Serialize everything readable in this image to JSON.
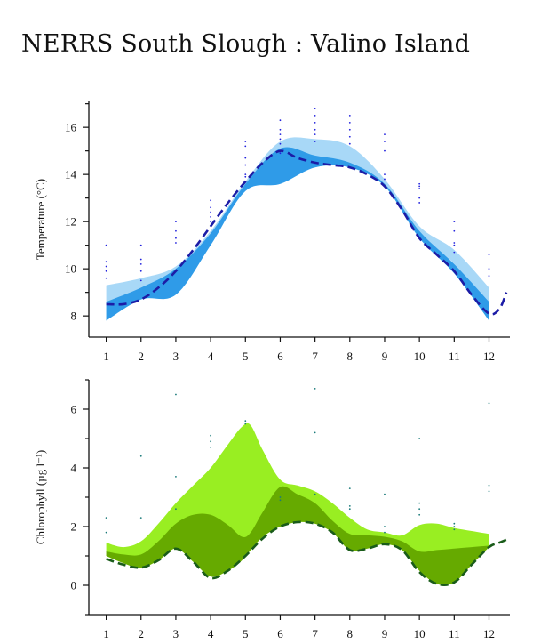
{
  "page": {
    "title": "NERRS South Slough : Valino Island"
  },
  "chart_data": [
    {
      "type": "area",
      "ylabel": "Temperature (°C)",
      "x_ticks": [
        1,
        2,
        3,
        4,
        5,
        6,
        7,
        8,
        9,
        10,
        11,
        12
      ],
      "y_ticks": [
        8,
        10,
        12,
        14,
        16
      ],
      "xlim": [
        0.5,
        12.6
      ],
      "ylim": [
        7.1,
        17.1
      ],
      "colors": {
        "light_band": "#a8d8f7",
        "dark_band": "#2f9be8",
        "median_line": "#1c1ca6",
        "dots": "#2222dd"
      },
      "light_band": {
        "x": [
          1,
          2,
          3,
          4,
          5,
          6,
          7,
          8,
          9,
          10,
          11,
          12
        ],
        "upper": [
          9.3,
          9.6,
          10.1,
          11.6,
          13.7,
          15.4,
          15.5,
          15.2,
          13.8,
          11.8,
          10.8,
          9.2
        ],
        "lower": [
          7.8,
          8.7,
          8.9,
          11.0,
          13.3,
          13.6,
          14.3,
          14.3,
          13.5,
          11.4,
          10.2,
          7.9
        ]
      },
      "dark_band": {
        "x": [
          1,
          2,
          3,
          4,
          5,
          6,
          7,
          8,
          9,
          10,
          11,
          12
        ],
        "upper": [
          8.6,
          9.2,
          10.0,
          11.5,
          13.6,
          15.1,
          14.8,
          14.5,
          13.6,
          11.6,
          10.2,
          8.6
        ],
        "lower": [
          7.8,
          8.7,
          8.9,
          11.0,
          13.3,
          13.6,
          14.3,
          14.3,
          13.5,
          11.3,
          9.8,
          7.8
        ]
      },
      "median_line": {
        "x": [
          1,
          1.5,
          2,
          2.5,
          3,
          3.5,
          4,
          4.5,
          5,
          5.5,
          6,
          6.5,
          7,
          7.5,
          8,
          8.5,
          9,
          9.5,
          10,
          10.5,
          11,
          11.5,
          12,
          12.3,
          12.5
        ],
        "y": [
          8.5,
          8.5,
          8.7,
          9.2,
          9.9,
          10.8,
          11.8,
          12.8,
          13.7,
          14.5,
          15.0,
          14.7,
          14.5,
          14.4,
          14.3,
          14.0,
          13.5,
          12.5,
          11.3,
          10.6,
          9.9,
          8.9,
          8.1,
          8.3,
          9.0
        ]
      },
      "observations": [
        {
          "x": 1,
          "y": [
            11.0,
            10.3,
            10.1,
            9.9,
            9.6
          ]
        },
        {
          "x": 2,
          "y": [
            11.0,
            10.4,
            10.2,
            9.9,
            9.5
          ]
        },
        {
          "x": 3,
          "y": [
            12.0,
            11.6,
            11.3,
            11.1
          ]
        },
        {
          "x": 4,
          "y": [
            12.9,
            12.6,
            12.4,
            12.2,
            12.0
          ]
        },
        {
          "x": 5,
          "y": [
            15.4,
            15.2,
            14.7,
            14.4,
            14.0,
            13.9
          ]
        },
        {
          "x": 6,
          "y": [
            16.3,
            15.9,
            15.7,
            15.5,
            15.3,
            14.9
          ]
        },
        {
          "x": 7,
          "y": [
            16.8,
            16.5,
            16.2,
            15.9,
            15.7,
            15.4
          ]
        },
        {
          "x": 8,
          "y": [
            16.5,
            16.2,
            15.9,
            15.6,
            15.3
          ]
        },
        {
          "x": 9,
          "y": [
            15.7,
            15.4,
            15.0,
            14.0,
            13.8
          ]
        },
        {
          "x": 10,
          "y": [
            13.6,
            13.5,
            13.4,
            13.0,
            12.8
          ]
        },
        {
          "x": 11,
          "y": [
            12.0,
            11.6,
            11.1,
            11.0,
            10.7
          ]
        },
        {
          "x": 12,
          "y": [
            10.6,
            10.0,
            9.7
          ]
        }
      ]
    },
    {
      "type": "area",
      "ylabel": "Chlorophyll (µg l⁻¹)",
      "x_ticks": [
        1,
        2,
        3,
        4,
        5,
        6,
        7,
        8,
        9,
        10,
        11,
        12
      ],
      "y_ticks": [
        0,
        2,
        4,
        6
      ],
      "xlim": [
        0.5,
        12.6
      ],
      "ylim": [
        -1.0,
        7.0
      ],
      "colors": {
        "light_band": "#99ee22",
        "dark_band": "#66aa00",
        "median_line": "#1a5c1a",
        "dots": "#1a7a7a"
      },
      "light_band": {
        "x": [
          1,
          1.5,
          2,
          2.5,
          3,
          3.5,
          4,
          4.5,
          4.9,
          5.15,
          5.5,
          6,
          6.5,
          7,
          7.5,
          8,
          8.5,
          9,
          9.5,
          10,
          10.5,
          11,
          11.5,
          12
        ],
        "upper": [
          1.45,
          1.3,
          1.5,
          2.1,
          2.8,
          3.4,
          4.0,
          4.8,
          5.4,
          5.45,
          4.6,
          3.6,
          3.4,
          3.2,
          2.8,
          2.3,
          1.9,
          1.8,
          1.7,
          2.05,
          2.1,
          1.95,
          1.85,
          1.75
        ],
        "lower": [
          1.0,
          0.75,
          0.6,
          0.85,
          1.25,
          0.8,
          0.3,
          0.5,
          0.85,
          1.2,
          1.65,
          2.0,
          2.15,
          2.1,
          1.8,
          1.2,
          1.25,
          1.4,
          1.2,
          0.5,
          0.05,
          0.1,
          0.7,
          1.3
        ]
      },
      "dark_band": {
        "x": [
          1,
          1.5,
          2,
          2.5,
          3,
          3.5,
          4,
          4.5,
          4.9,
          5.15,
          5.5,
          6,
          6.5,
          7,
          7.5,
          8,
          8.5,
          9,
          9.5,
          10,
          10.5,
          11,
          11.5,
          12
        ],
        "upper": [
          1.15,
          1.05,
          1.05,
          1.5,
          2.1,
          2.4,
          2.4,
          2.05,
          1.65,
          1.8,
          2.5,
          3.35,
          3.1,
          2.8,
          2.2,
          1.75,
          1.7,
          1.65,
          1.5,
          1.15,
          1.2,
          1.25,
          1.3,
          1.35
        ],
        "lower": [
          1.0,
          0.75,
          0.6,
          0.85,
          1.25,
          0.8,
          0.3,
          0.5,
          0.85,
          1.2,
          1.65,
          2.0,
          2.15,
          2.1,
          1.8,
          1.2,
          1.25,
          1.4,
          1.2,
          0.5,
          0.05,
          0.1,
          0.7,
          1.3
        ]
      },
      "median_line": {
        "x": [
          1,
          1.5,
          2,
          2.5,
          3,
          3.5,
          4,
          4.5,
          5,
          5.5,
          6,
          6.5,
          7,
          7.5,
          8,
          8.5,
          9,
          9.5,
          10,
          10.5,
          11,
          11.5,
          12,
          12.3,
          12.6
        ],
        "y": [
          0.9,
          0.7,
          0.6,
          0.85,
          1.25,
          0.8,
          0.25,
          0.5,
          1.0,
          1.6,
          2.0,
          2.15,
          2.1,
          1.8,
          1.2,
          1.25,
          1.4,
          1.2,
          0.45,
          0.05,
          0.1,
          0.7,
          1.3,
          1.45,
          1.6
        ]
      },
      "observations": [
        {
          "x": 1,
          "y": [
            2.3,
            1.8
          ]
        },
        {
          "x": 2,
          "y": [
            4.4,
            2.3
          ]
        },
        {
          "x": 3,
          "y": [
            6.5,
            3.7,
            2.6
          ]
        },
        {
          "x": 4,
          "y": [
            5.1,
            4.9,
            4.7
          ]
        },
        {
          "x": 5,
          "y": [
            5.6,
            5.5
          ]
        },
        {
          "x": 6,
          "y": [
            3.0,
            2.9
          ]
        },
        {
          "x": 7,
          "y": [
            6.7,
            5.2,
            3.1
          ]
        },
        {
          "x": 8,
          "y": [
            3.3,
            2.7,
            2.6
          ]
        },
        {
          "x": 9,
          "y": [
            3.1,
            2.0,
            1.8
          ]
        },
        {
          "x": 10,
          "y": [
            5.0,
            2.8,
            2.6,
            2.4
          ]
        },
        {
          "x": 11,
          "y": [
            2.1,
            2.0,
            1.9
          ]
        },
        {
          "x": 12,
          "y": [
            6.2,
            3.4,
            3.2
          ]
        }
      ]
    }
  ]
}
